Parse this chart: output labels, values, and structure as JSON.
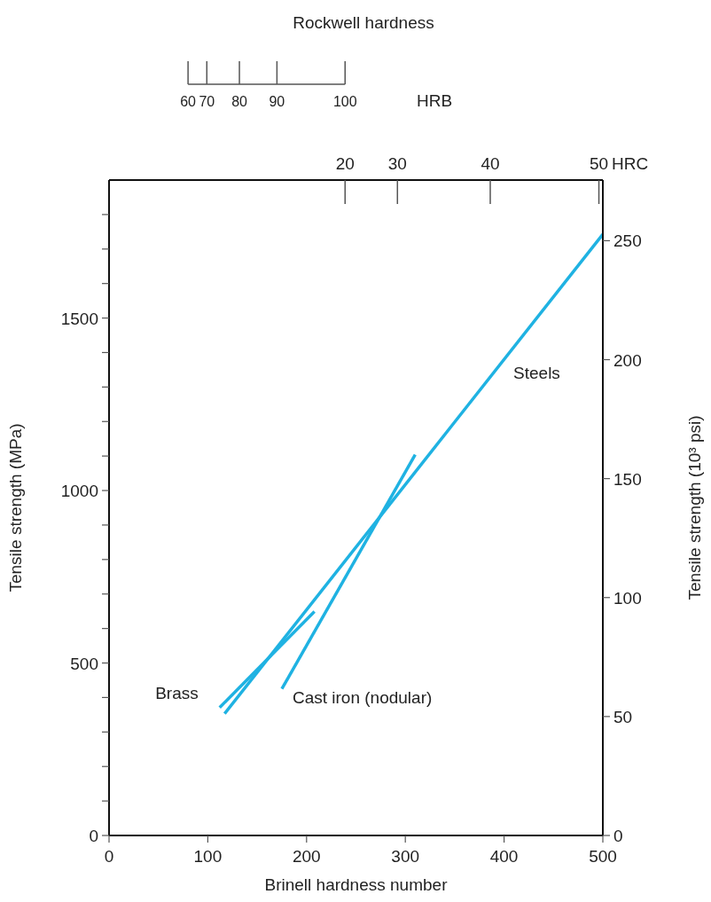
{
  "chart_data": {
    "type": "line",
    "annotations": [
      "Rockwell hardness",
      "HRB",
      "HRC",
      "20",
      "30",
      "40",
      "50",
      "60",
      "70",
      "80",
      "90",
      "100"
    ],
    "xlabel": "Brinell hardness number",
    "ylabel": "Tensile strength (MPa)",
    "y2label": "Tensile strength (10³ psi)",
    "series": [
      {
        "name": "Steels",
        "color": "#1fb2e2",
        "x": [
          117,
          500
        ],
        "values": [
          353,
          1743
        ]
      },
      {
        "name": "Cast iron (nodular)",
        "color": "#1fb2e2",
        "x": [
          175,
          310
        ],
        "values": [
          425,
          1104
        ]
      },
      {
        "name": "Brass",
        "color": "#1fb2e2",
        "x": [
          112,
          208
        ],
        "values": [
          371,
          649
        ]
      }
    ],
    "xlim": [
      0,
      500
    ],
    "xticks": [
      0,
      100,
      200,
      300,
      400,
      500
    ],
    "ylim": [
      0,
      1900
    ],
    "yticks": [
      0,
      {
        "value": 100,
        "label": null
      },
      {
        "value": 200,
        "label": null
      },
      {
        "value": 300,
        "label": null
      },
      {
        "value": 400,
        "label": null
      },
      500,
      {
        "value": 600,
        "label": null
      },
      {
        "value": 700,
        "label": null
      },
      {
        "value": 800,
        "label": null
      },
      {
        "value": 900,
        "label": null
      },
      1000,
      {
        "value": 1100,
        "label": null
      },
      {
        "value": 1200,
        "label": null
      },
      {
        "value": 1300,
        "label": null
      },
      {
        "value": 1400,
        "label": null
      },
      1500,
      {
        "value": 1600,
        "label": null
      },
      {
        "value": 1700,
        "label": null
      },
      {
        "value": 1800,
        "label": null
      }
    ],
    "y2lim": [
      0,
      275.5
    ],
    "y2ticks": [
      0,
      50,
      100,
      150,
      200,
      250
    ],
    "marker": "none",
    "line_style": "solid"
  }
}
